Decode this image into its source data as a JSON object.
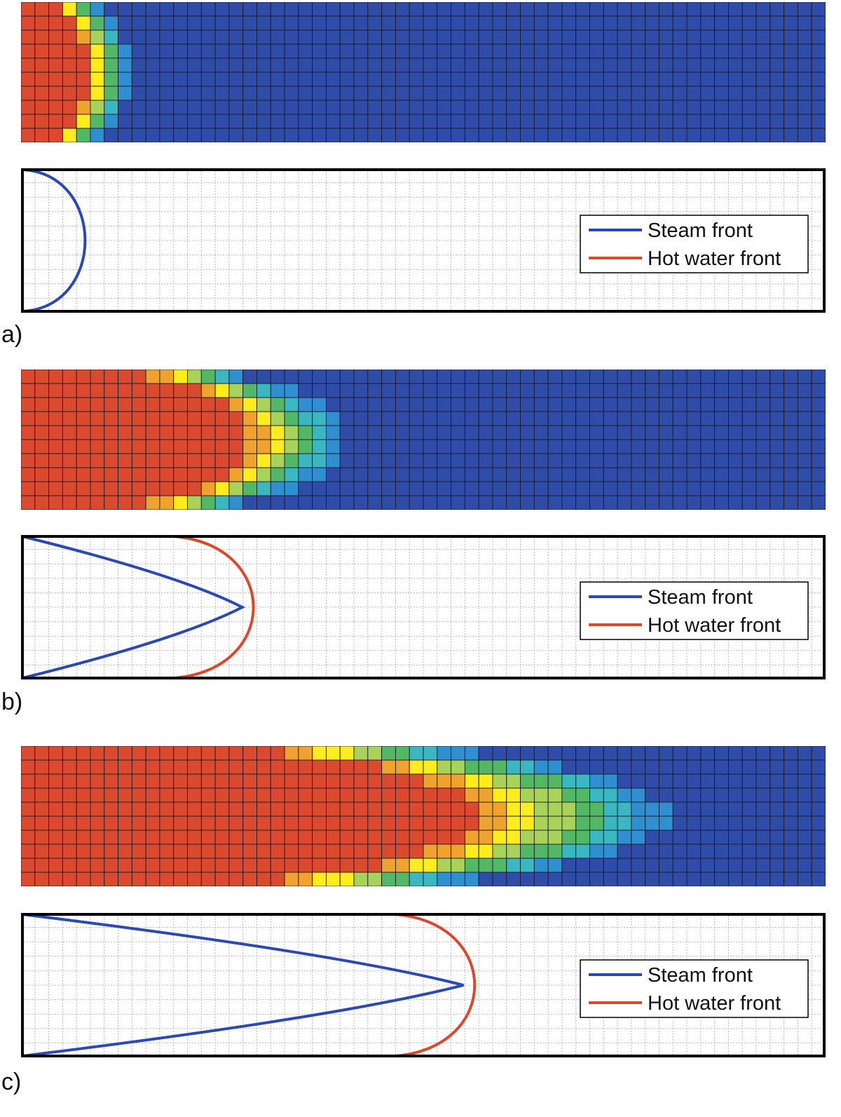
{
  "colors": {
    "steam_front": "#2c48b5",
    "hot_water_front": "#d94a2c",
    "colormap": [
      "#2f4ca8",
      "#2f8fd0",
      "#3bb7c2",
      "#52b866",
      "#a8d25a",
      "#ffec1f",
      "#f0a22e",
      "#db4a2e"
    ]
  },
  "chart_data": [
    {
      "panel": "a",
      "type": "heatmap",
      "grid": {
        "cols": 58,
        "rows": 10
      },
      "steam_front_reach": 0.08,
      "hot_water_front_reach": null,
      "legend": [
        "Steam front",
        "Hot water front"
      ]
    },
    {
      "panel": "b",
      "type": "heatmap",
      "grid": {
        "cols": 58,
        "rows": 10
      },
      "steam_front_reach": 0.275,
      "hot_water_front_reach": 0.275,
      "hot_water_front_start": 0.19,
      "legend": [
        "Steam front",
        "Hot water front"
      ]
    },
    {
      "panel": "c",
      "type": "heatmap",
      "grid": {
        "cols": 58,
        "rows": 10
      },
      "steam_front_reach": 0.55,
      "hot_water_front_reach": 0.55,
      "hot_water_front_start": 0.465,
      "legend": [
        "Steam front",
        "Hot water front"
      ]
    }
  ],
  "panels": [
    {
      "label": "a)",
      "legend_steam": "Steam front",
      "legend_hot": "Hot water front"
    },
    {
      "label": "b)",
      "legend_steam": "Steam front",
      "legend_hot": "Hot water front"
    },
    {
      "label": "c)",
      "legend_steam": "Steam front",
      "legend_hot": "Hot water front"
    }
  ]
}
